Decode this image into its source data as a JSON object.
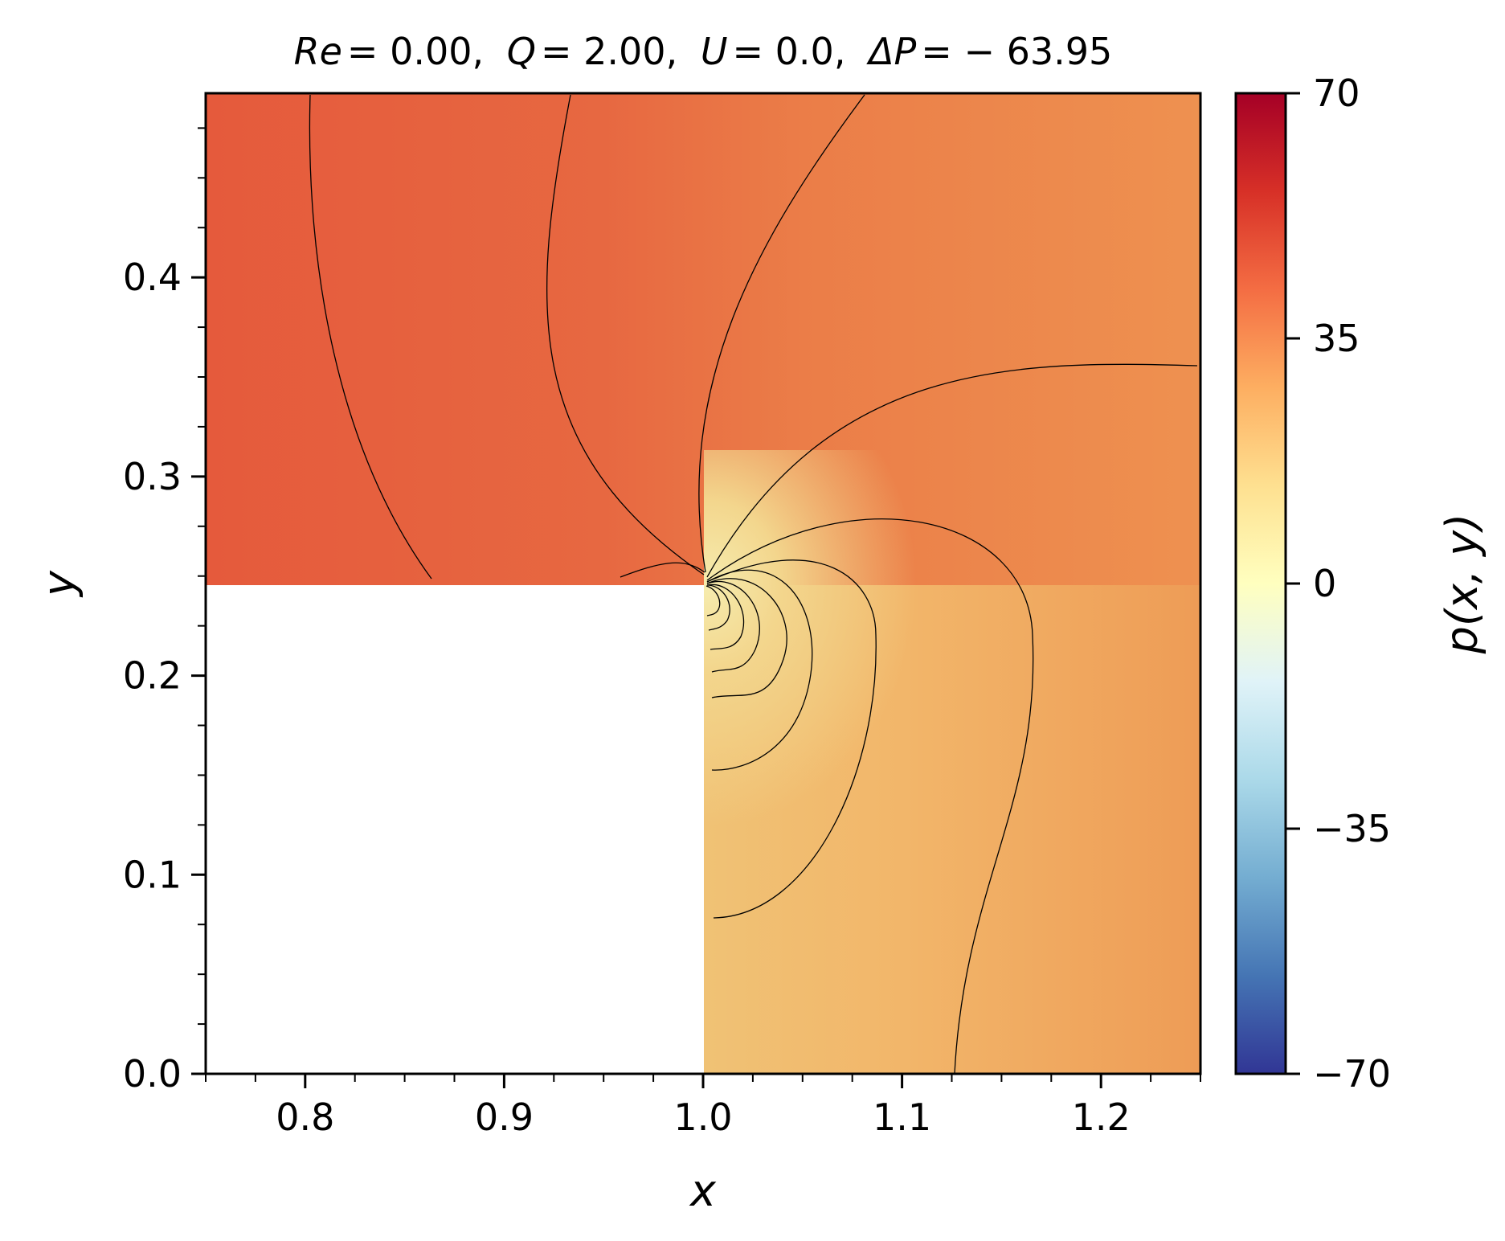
{
  "chart_data": {
    "type": "heatmap",
    "title": {
      "re_sym": "Re",
      "re_val": "= 0.00",
      "q_sym": "Q",
      "q_val": "= 2.00",
      "u_sym": "U",
      "u_val": "= 0.0",
      "dp_sym": "ΔP",
      "dp_val": "= − 63.95",
      "sep": ","
    },
    "xlabel": "x",
    "ylabel": "y",
    "xlim": [
      0.75,
      1.25
    ],
    "ylim": [
      0.0,
      0.4925
    ],
    "x_ticks": [
      "0.8",
      "0.9",
      "1.0",
      "1.1",
      "1.2"
    ],
    "y_ticks": [
      "0.0",
      "0.1",
      "0.2",
      "0.3",
      "0.4"
    ],
    "colorbar": {
      "label": "p(x, y)",
      "min": -70,
      "max": 70,
      "ticks": [
        "70",
        "35",
        "0",
        "−35",
        "−70"
      ],
      "colormap": "RdYlBu_r",
      "colors": [
        "#313695",
        "#4575b4",
        "#74add1",
        "#abd9e9",
        "#e0f3f8",
        "#ffffbf",
        "#fee090",
        "#fdae61",
        "#f46d43",
        "#d73027",
        "#a50026"
      ]
    },
    "domain_cutout": {
      "x": [
        0.75,
        1.0
      ],
      "y": [
        0.0,
        0.2475
      ],
      "color": "#ffffff"
    },
    "field_samples": [
      {
        "x": 0.8,
        "y": 0.4,
        "p": 46
      },
      {
        "x": 0.95,
        "y": 0.3,
        "p": 45
      },
      {
        "x": 1.05,
        "y": 0.45,
        "p": 38
      },
      {
        "x": 1.2,
        "y": 0.4,
        "p": 31
      },
      {
        "x": 1.02,
        "y": 0.2,
        "p": 18
      },
      {
        "x": 1.1,
        "y": 0.1,
        "p": 26
      },
      {
        "x": 1.23,
        "y": 0.02,
        "p": 30
      }
    ],
    "contour_color": "#000000"
  }
}
